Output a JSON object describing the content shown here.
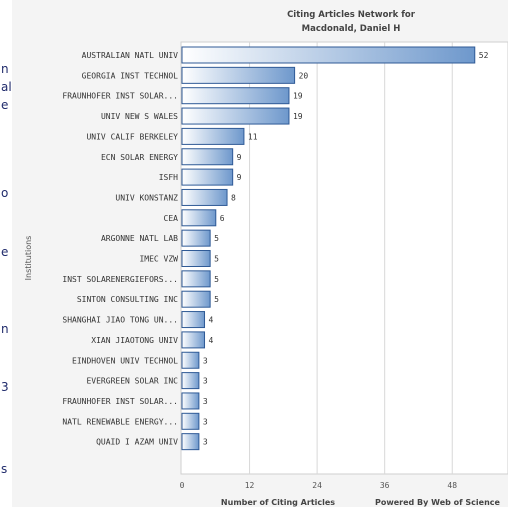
{
  "left_strip": {
    "fragments": [
      "n",
      "al",
      "e",
      "o",
      "e",
      "n",
      "3",
      "s"
    ]
  },
  "credit": "Powered By Web of Science",
  "chart_data": {
    "type": "bar",
    "orientation": "horizontal",
    "title": [
      "Citing Articles Network for",
      "Macdonald, Daniel H"
    ],
    "xlabel": "Number of Citing Articles",
    "ylabel": "Institutions",
    "xlim": [
      0,
      52
    ],
    "xticks": [
      0,
      12,
      24,
      36,
      48
    ],
    "grid": true,
    "bar_colors": [
      "#ffffff",
      "#6e98cc"
    ],
    "categories": [
      "AUSTRALIAN NATL UNIV",
      "GEORGIA INST TECHNOL",
      "FRAUNHOFER INST SOLAR...",
      "UNIV NEW S WALES",
      "UNIV CALIF BERKELEY",
      "ECN SOLAR ENERGY",
      "ISFH",
      "UNIV KONSTANZ",
      "CEA",
      "ARGONNE NATL LAB",
      "IMEC VZW",
      "INST SOLARENERGIEFORS...",
      "SINTON CONSULTING INC",
      "SHANGHAI JIAO TONG UN...",
      "XIAN JIAOTONG UNIV",
      "EINDHOVEN UNIV TECHNOL",
      "EVERGREEN SOLAR INC",
      "FRAUNHOFER INST SOLAR...",
      "NATL RENEWABLE ENERGY...",
      "QUAID I AZAM UNIV"
    ],
    "values": [
      52,
      20,
      19,
      19,
      11,
      9,
      9,
      8,
      6,
      5,
      5,
      5,
      5,
      4,
      4,
      3,
      3,
      3,
      3,
      3
    ]
  }
}
